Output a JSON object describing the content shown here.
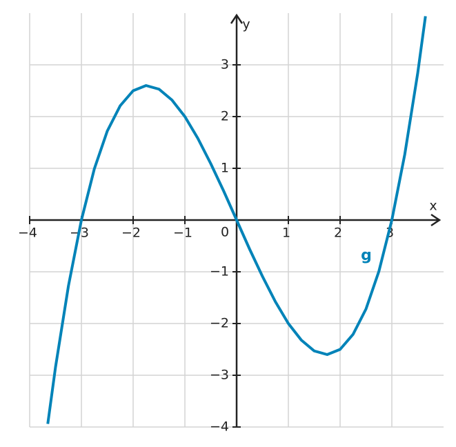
{
  "chart_data": {
    "type": "line",
    "x_label": "x",
    "y_label": "y",
    "origin_label": "0",
    "xlim": [
      -4,
      4
    ],
    "ylim": [
      -4,
      4
    ],
    "xticks": [
      {
        "value": -4,
        "label": "−4"
      },
      {
        "value": -3,
        "label": "−3"
      },
      {
        "value": -2,
        "label": "−2"
      },
      {
        "value": -1,
        "label": "−1"
      },
      1,
      2,
      3
    ],
    "yticks": [
      {
        "value": -4,
        "label": "−4"
      },
      {
        "value": -3,
        "label": "−3"
      },
      {
        "value": -2,
        "label": "−2"
      },
      {
        "value": -1,
        "label": "−1"
      },
      1,
      2,
      3
    ],
    "grid": true,
    "x": [
      -3.65,
      -3.5,
      -3.25,
      -3,
      -2.75,
      -2.5,
      -2.25,
      -2,
      -1.75,
      -1.5,
      -1.25,
      -1,
      -0.75,
      -0.5,
      -0.25,
      0,
      0.25,
      0.5,
      0.75,
      1,
      1.25,
      1.5,
      1.75,
      2,
      2.25,
      2.5,
      2.75,
      3,
      3.25,
      3.5,
      3.65
    ],
    "series": [
      {
        "name": "g",
        "color": "#0083b8",
        "values": [
          -3.94,
          -2.84,
          -1.27,
          0,
          0.99,
          1.72,
          2.21,
          2.5,
          2.6,
          2.53,
          2.32,
          2,
          1.58,
          1.09,
          0.56,
          0,
          -0.56,
          -1.09,
          -1.58,
          -2,
          -2.32,
          -2.53,
          -2.6,
          -2.5,
          -2.21,
          -1.72,
          -0.99,
          0,
          1.27,
          2.84,
          3.94
        ]
      }
    ]
  }
}
